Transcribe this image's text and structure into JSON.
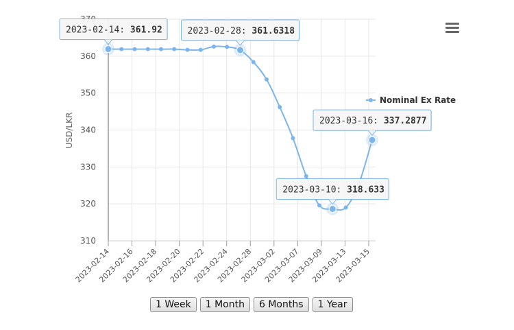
{
  "chart_data": {
    "type": "line",
    "title": "",
    "xlabel": "",
    "ylabel": "USD/LKR",
    "ylim": [
      310,
      370
    ],
    "yticks": [
      310,
      320,
      330,
      340,
      350,
      360,
      370
    ],
    "x_tick_labels": [
      "2023-02-14",
      "2023-02-16",
      "2023-02-18",
      "2023-02-20",
      "2023-02-22",
      "2023-02-24",
      "2023-02-28",
      "2023-03-02",
      "2023-03-07",
      "2023-03-09",
      "2023-03-13",
      "2023-03-15"
    ],
    "series": [
      {
        "name": "Nominal Ex Rate",
        "color": "#7cb5ec",
        "values": [
          361.92,
          361.9,
          361.9,
          361.9,
          361.9,
          361.9,
          361.7,
          361.7,
          362.6,
          362.5,
          361.6318,
          358.4,
          353.7,
          346.2,
          337.8,
          327.5,
          319.6,
          318.633,
          319.0,
          325.5,
          337.2877
        ]
      }
    ],
    "legend_position": "right",
    "grid": true,
    "tooltips": [
      {
        "label": "2023-02-14",
        "value": "361.92",
        "index": 0
      },
      {
        "label": "2023-02-28",
        "value": "361.6318",
        "index": 10
      },
      {
        "label": "2023-03-10",
        "value": "318.633",
        "index": 17
      },
      {
        "label": "2023-03-16",
        "value": "337.2877",
        "index": 20
      }
    ]
  },
  "menu_icon": "hamburger-menu-icon",
  "range_buttons": [
    "1 Week",
    "1 Month",
    "6 Months",
    "1 Year"
  ]
}
